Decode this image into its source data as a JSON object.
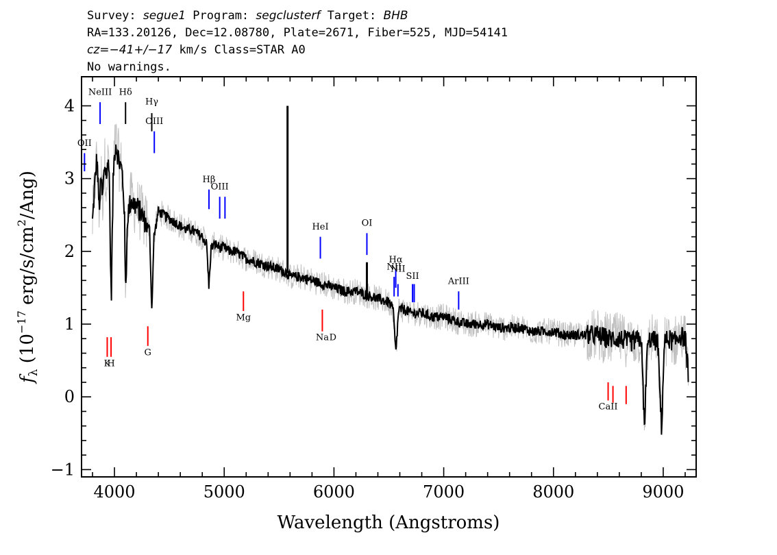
{
  "header": {
    "line1": {
      "survey_label": "Survey: ",
      "survey": "segue1",
      "program_label": " Program: ",
      "program": "segclusterf",
      "target_label": " Target: ",
      "target": "BHB"
    },
    "line2": "RA=133.20126, Dec=12.08780, Plate=2671, Fiber=525, MJD=54141",
    "line3": {
      "cz_label": "cz=",
      "cz": "−41+/−17",
      "rest": " km/s Class=STAR A0"
    },
    "line4": "No warnings."
  },
  "chart_data": {
    "type": "line",
    "xlabel": "Wavelength (Angstroms)",
    "ylabel": "f_λ (10^-17 erg/s/cm^2/Ang)",
    "xlim": [
      3700,
      9300
    ],
    "ylim": [
      -1.1,
      4.4
    ],
    "x_ticks": [
      4000,
      5000,
      6000,
      7000,
      8000,
      9000
    ],
    "y_ticks": [
      -1,
      0,
      1,
      2,
      3,
      4
    ],
    "grid": false,
    "series": [
      {
        "role": "flux",
        "color": "#000000",
        "x": [
          3800,
          3820,
          3840,
          3860,
          3880,
          3890,
          3910,
          3930,
          3950,
          3970,
          3990,
          4010,
          4040,
          4070,
          4090,
          4101,
          4120,
          4150,
          4180,
          4210,
          4250,
          4280,
          4320,
          4340,
          4360,
          4400,
          4450,
          4500,
          4550,
          4600,
          4650,
          4700,
          4750,
          4800,
          4840,
          4861,
          4880,
          4920,
          4960,
          5000,
          5050,
          5100,
          5150,
          5200,
          5300,
          5400,
          5500,
          5577,
          5600,
          5700,
          5800,
          5900,
          6000,
          6100,
          6200,
          6300,
          6400,
          6500,
          6540,
          6563,
          6590,
          6650,
          6700,
          6800,
          6900,
          7000,
          7100,
          7200,
          7300,
          7400,
          7500,
          7600,
          7700,
          7800,
          7900,
          8000,
          8100,
          8200,
          8300,
          8400,
          8500,
          8600,
          8700,
          8800,
          8830,
          8850,
          8880,
          8950,
          8985,
          9010,
          9050,
          9100,
          9150,
          9200,
          9230
        ],
        "y": [
          2.4,
          2.9,
          3.3,
          2.6,
          3.0,
          2.7,
          3.2,
          3.05,
          3.3,
          1.3,
          3.1,
          3.5,
          3.25,
          3.1,
          2.6,
          1.4,
          2.5,
          2.7,
          2.65,
          2.6,
          2.5,
          2.4,
          2.3,
          1.2,
          2.2,
          2.55,
          2.5,
          2.45,
          2.4,
          2.35,
          2.3,
          2.3,
          2.25,
          2.2,
          2.1,
          1.5,
          2.05,
          2.1,
          2.05,
          2.05,
          2.0,
          2.0,
          1.95,
          1.9,
          1.85,
          1.8,
          1.75,
          1.7,
          1.65,
          1.65,
          1.6,
          1.55,
          1.5,
          1.45,
          1.45,
          1.4,
          1.35,
          1.3,
          1.2,
          0.6,
          1.2,
          1.2,
          1.15,
          1.15,
          1.1,
          1.1,
          1.05,
          1.0,
          1.0,
          1.0,
          0.95,
          0.95,
          0.95,
          0.9,
          0.9,
          0.9,
          0.85,
          0.85,
          0.85,
          0.85,
          0.8,
          0.8,
          0.75,
          0.8,
          -0.5,
          0.6,
          0.8,
          0.75,
          -0.45,
          0.75,
          0.8,
          0.75,
          0.85,
          0.8,
          0.3
        ]
      }
    ],
    "spikes": [
      {
        "x": 5577,
        "y": 4.0,
        "color": "#000000"
      },
      {
        "x": 6300,
        "y": 1.85,
        "color": "#000000"
      }
    ],
    "emission_lines": [
      {
        "label": "OII",
        "x": 3727,
        "y_top": 3.35,
        "y_bottom": 3.1,
        "color": "#0000ff",
        "label_y": 3.45
      },
      {
        "label": "NeIII",
        "x": 3869,
        "y_top": 4.05,
        "y_bottom": 3.75,
        "color": "#0000ff",
        "label_y": 4.15
      },
      {
        "label": "Hδ",
        "x": 4101,
        "y_top": 4.05,
        "y_bottom": 3.75,
        "color": "#000000",
        "label_y": 4.15
      },
      {
        "label": "Hγ",
        "x": 4340,
        "y_top": 3.9,
        "y_bottom": 3.65,
        "color": "#000000",
        "label_y": 4.02
      },
      {
        "label": "OIII",
        "x": 4363,
        "y_top": 3.65,
        "y_bottom": 3.35,
        "color": "#0000ff",
        "label_y": 3.75
      },
      {
        "label": "Hβ",
        "x": 4861,
        "y_top": 2.85,
        "y_bottom": 2.58,
        "color": "#0000ff",
        "label_y": 2.95
      },
      {
        "label": "OIII",
        "x": 4959,
        "y_top": 2.75,
        "y_bottom": 2.45,
        "color": "#0000ff",
        "label_y": 2.85
      },
      {
        "label": "",
        "x": 5007,
        "y_top": 2.75,
        "y_bottom": 2.45,
        "color": "#0000ff",
        "label_y": 2.85
      },
      {
        "label": "HeI",
        "x": 5876,
        "y_top": 2.2,
        "y_bottom": 1.9,
        "color": "#0000ff",
        "label_y": 2.3
      },
      {
        "label": "OI",
        "x": 6300,
        "y_top": 2.25,
        "y_bottom": 1.95,
        "color": "#0000ff",
        "label_y": 2.35
      },
      {
        "label": "NII",
        "x": 6548,
        "y_top": 1.65,
        "y_bottom": 1.38,
        "color": "#0000ff",
        "label_y": 1.75
      },
      {
        "label": "Hα",
        "x": 6563,
        "y_top": 1.75,
        "y_bottom": 1.5,
        "color": "#0000ff",
        "label_y": 1.85
      },
      {
        "label": "NII",
        "x": 6583,
        "y_top": 1.55,
        "y_bottom": 1.38,
        "color": "#0000ff",
        "label_y": 1.72
      },
      {
        "label": "SII",
        "x": 6716,
        "y_top": 1.55,
        "y_bottom": 1.3,
        "color": "#0000ff",
        "label_y": 1.62
      },
      {
        "label": "",
        "x": 6731,
        "y_top": 1.55,
        "y_bottom": 1.3,
        "color": "#0000ff",
        "label_y": 1.62
      },
      {
        "label": "ArIII",
        "x": 7136,
        "y_top": 1.45,
        "y_bottom": 1.2,
        "color": "#0000ff",
        "label_y": 1.55
      }
    ],
    "absorption_lines": [
      {
        "label": "K",
        "x": 3934,
        "y_top": 0.82,
        "y_bottom": 0.55,
        "color": "#ff0000",
        "label_y": 0.42
      },
      {
        "label": "H",
        "x": 3969,
        "y_top": 0.82,
        "y_bottom": 0.55,
        "color": "#ff0000",
        "label_y": 0.42
      },
      {
        "label": "G",
        "x": 4304,
        "y_top": 0.97,
        "y_bottom": 0.7,
        "color": "#ff0000",
        "label_y": 0.57
      },
      {
        "label": "Mg",
        "x": 5175,
        "y_top": 1.45,
        "y_bottom": 1.18,
        "color": "#ff0000",
        "label_y": 1.05
      },
      {
        "label": "Na",
        "x": 5894,
        "y_top": 1.2,
        "y_bottom": 0.9,
        "color": "#ff0000",
        "label_y": 0.78
      },
      {
        "label": "D",
        "x": 5990,
        "y_top": null,
        "y_bottom": null,
        "color": "#ff0000",
        "label_y": 0.78
      },
      {
        "label": "CaII",
        "x": 8498,
        "y_top": 0.2,
        "y_bottom": -0.05,
        "color": "#ff0000",
        "label_y": -0.17
      },
      {
        "label": "",
        "x": 8542,
        "y_top": 0.15,
        "y_bottom": -0.08,
        "color": "#ff0000",
        "label_y": -0.17
      },
      {
        "label": "",
        "x": 8662,
        "y_top": 0.15,
        "y_bottom": -0.1,
        "color": "#ff0000",
        "label_y": -0.17
      }
    ],
    "colors": {
      "flux": "#000000",
      "noise_band": "#c0c0c0",
      "emission": "#0000ff",
      "absorption": "#ff0000"
    }
  }
}
